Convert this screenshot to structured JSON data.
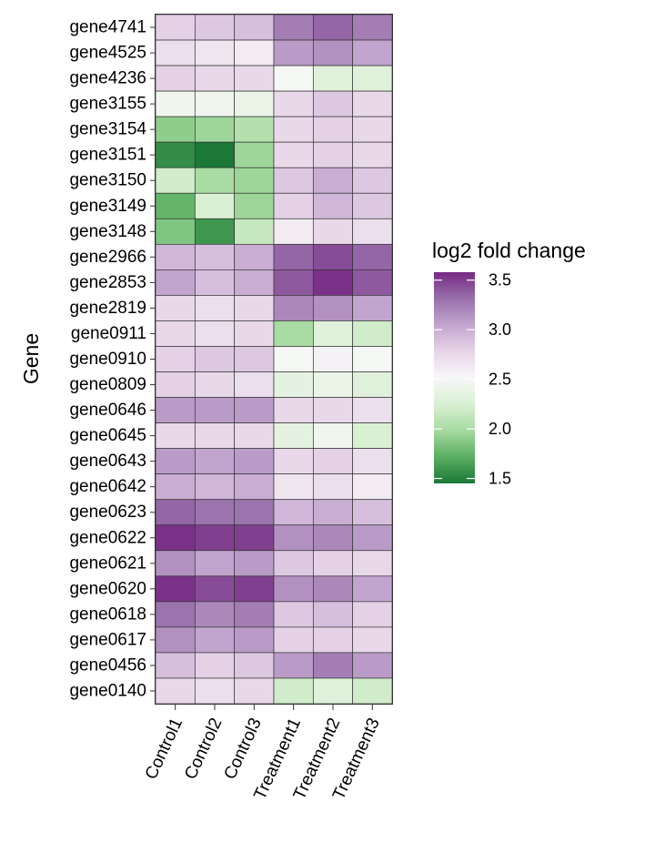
{
  "chart_data": {
    "type": "heatmap",
    "title": "",
    "xlabel": "",
    "ylabel": "Gene",
    "columns": [
      "Control1",
      "Control2",
      "Control3",
      "Treatment1",
      "Treatment2",
      "Treatment3"
    ],
    "rows": [
      "gene4741",
      "gene4525",
      "gene4236",
      "gene3155",
      "gene3154",
      "gene3151",
      "gene3150",
      "gene3149",
      "gene3148",
      "gene2966",
      "gene2853",
      "gene2819",
      "gene0911",
      "gene0910",
      "gene0809",
      "gene0646",
      "gene0645",
      "gene0643",
      "gene0642",
      "gene0623",
      "gene0622",
      "gene0621",
      "gene0620",
      "gene0618",
      "gene0617",
      "gene0456",
      "gene0140"
    ],
    "values": [
      [
        2.8,
        2.85,
        2.9,
        3.25,
        3.35,
        3.25
      ],
      [
        2.7,
        2.65,
        2.6,
        3.1,
        3.15,
        3.05
      ],
      [
        2.8,
        2.75,
        2.75,
        2.5,
        2.3,
        2.3
      ],
      [
        2.45,
        2.45,
        2.4,
        2.75,
        2.85,
        2.75
      ],
      [
        1.9,
        1.95,
        2.05,
        2.75,
        2.8,
        2.75
      ],
      [
        1.55,
        1.45,
        1.95,
        2.75,
        2.8,
        2.75
      ],
      [
        2.2,
        2.0,
        1.95,
        2.85,
        3.0,
        2.85
      ],
      [
        1.75,
        2.25,
        1.95,
        2.8,
        2.95,
        2.85
      ],
      [
        1.85,
        1.6,
        2.15,
        2.6,
        2.75,
        2.7
      ],
      [
        2.95,
        2.9,
        3.0,
        3.35,
        3.45,
        3.35
      ],
      [
        3.05,
        2.9,
        3.0,
        3.4,
        3.55,
        3.4
      ],
      [
        2.75,
        2.7,
        2.75,
        3.2,
        3.15,
        3.05
      ],
      [
        2.75,
        2.7,
        2.75,
        2.0,
        2.3,
        2.2
      ],
      [
        2.8,
        2.85,
        2.85,
        2.5,
        2.55,
        2.5
      ],
      [
        2.8,
        2.75,
        2.7,
        2.35,
        2.4,
        2.3
      ],
      [
        3.1,
        3.1,
        3.1,
        2.75,
        2.75,
        2.7
      ],
      [
        2.75,
        2.75,
        2.75,
        2.35,
        2.45,
        2.25
      ],
      [
        3.1,
        3.05,
        3.1,
        2.75,
        2.8,
        2.7
      ],
      [
        3.0,
        2.95,
        3.0,
        2.65,
        2.7,
        2.6
      ],
      [
        3.35,
        3.3,
        3.3,
        2.95,
        3.0,
        2.9
      ],
      [
        3.55,
        3.5,
        3.5,
        3.15,
        3.2,
        3.1
      ],
      [
        3.15,
        3.05,
        3.1,
        2.85,
        2.8,
        2.75
      ],
      [
        3.55,
        3.45,
        3.5,
        3.15,
        3.2,
        3.05
      ],
      [
        3.3,
        3.2,
        3.25,
        2.85,
        2.9,
        2.8
      ],
      [
        3.15,
        3.05,
        3.1,
        2.8,
        2.8,
        2.75
      ],
      [
        2.9,
        2.8,
        2.85,
        3.1,
        3.25,
        3.1
      ],
      [
        2.75,
        2.7,
        2.75,
        2.2,
        2.3,
        2.2
      ]
    ],
    "legend": {
      "title": "log2 fold change",
      "position": "right",
      "ticks": [
        1.5,
        2.0,
        2.5,
        3.0,
        3.5
      ],
      "tick_labels": [
        "1.5",
        "2.0",
        "2.5",
        "3.0",
        "3.5"
      ],
      "range": [
        1.45,
        3.58
      ]
    },
    "colors": {
      "low": "#1b7837",
      "mid": "#f7f7f7",
      "high": "#762a83",
      "stops": [
        "#1b7837",
        "#5aae61",
        "#a6dba0",
        "#d9f0d3",
        "#f7f7f7",
        "#e7d4e8",
        "#c2a5cf",
        "#9970ab",
        "#762a83"
      ]
    },
    "grid": false
  }
}
